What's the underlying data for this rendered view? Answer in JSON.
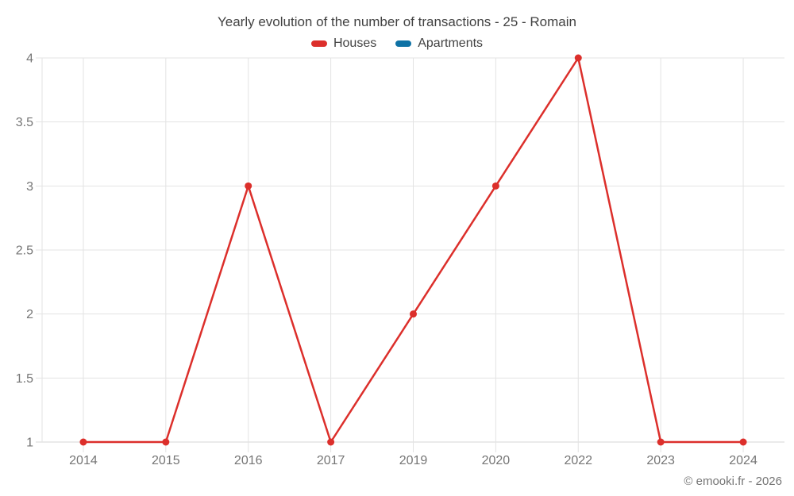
{
  "chart_data": {
    "type": "line",
    "title": "Yearly evolution of the number of transactions - 25 - Romain",
    "categories": [
      "2014",
      "2015",
      "2016",
      "2017",
      "2019",
      "2020",
      "2022",
      "2023",
      "2024"
    ],
    "series": [
      {
        "name": "Houses",
        "color": "#dc2f2b",
        "values": [
          1,
          1,
          3,
          1,
          2,
          3,
          4,
          1,
          1
        ]
      },
      {
        "name": "Apartments",
        "color": "#0e72a5",
        "values": []
      }
    ],
    "xlabel": "",
    "ylabel": "",
    "ylim": [
      1,
      4
    ],
    "yticks": [
      1,
      1.5,
      2,
      2.5,
      3,
      3.5,
      4
    ],
    "ytick_labels": [
      "1",
      "1.5",
      "2",
      "2.5",
      "3",
      "3.5",
      "4"
    ],
    "grid": true,
    "legend_position": "top"
  },
  "footer": {
    "credit": "© emooki.fr - 2026"
  },
  "colors": {
    "gridline": "#e3e3e3",
    "baseline": "#d6d6d6",
    "axis_text": "#757575",
    "title_text": "#424242"
  }
}
